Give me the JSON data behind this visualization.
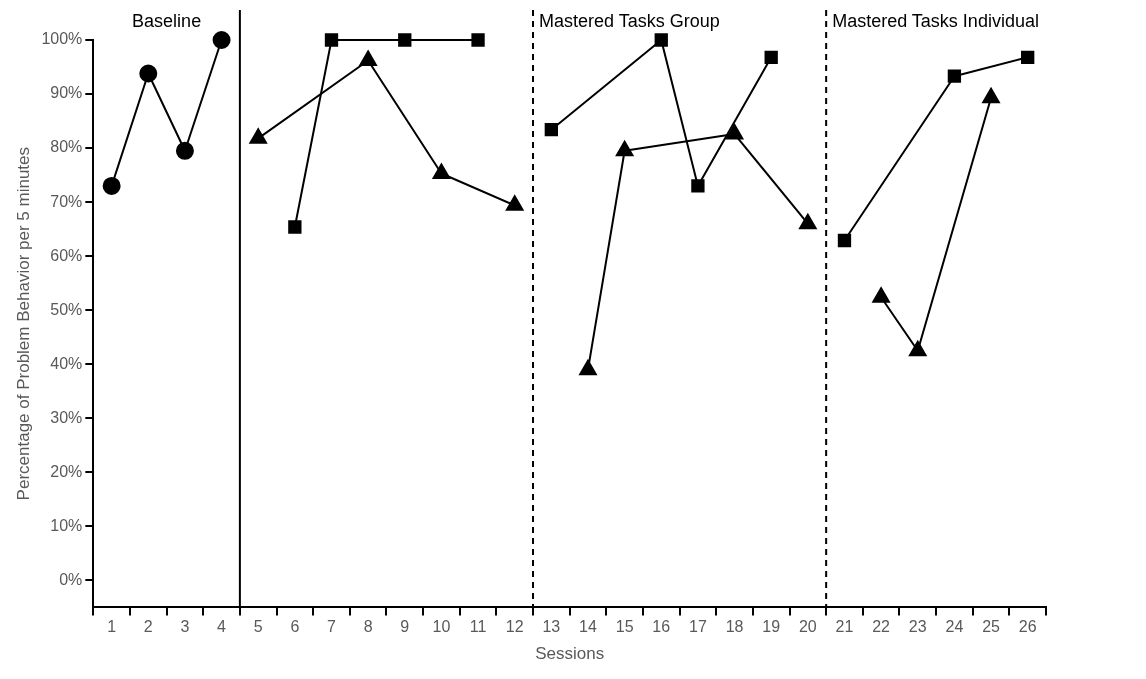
{
  "chart_data": {
    "type": "line",
    "xlabel": "Sessions",
    "ylabel": "Percentage of Problem Behavior per 5 minutes",
    "xlim": [
      0.5,
      26.5
    ],
    "xticks": [
      {
        "value": 0.5,
        "label": null
      },
      1,
      {
        "value": 1.5,
        "label": null
      },
      2,
      {
        "value": 2.5,
        "label": null
      },
      3,
      {
        "value": 3.5,
        "label": null
      },
      4,
      {
        "value": 4.5,
        "label": null
      },
      5,
      {
        "value": 5.5,
        "label": null
      },
      6,
      {
        "value": 6.5,
        "label": null
      },
      7,
      {
        "value": 7.5,
        "label": null
      },
      8,
      {
        "value": 8.5,
        "label": null
      },
      9,
      {
        "value": 9.5,
        "label": null
      },
      10,
      {
        "value": 10.5,
        "label": null
      },
      11,
      {
        "value": 11.5,
        "label": null
      },
      12,
      {
        "value": 12.5,
        "label": null
      },
      13,
      {
        "value": 13.5,
        "label": null
      },
      14,
      {
        "value": 14.5,
        "label": null
      },
      15,
      {
        "value": 15.5,
        "label": null
      },
      16,
      {
        "value": 16.5,
        "label": null
      },
      17,
      {
        "value": 17.5,
        "label": null
      },
      18,
      {
        "value": 18.5,
        "label": null
      },
      19,
      {
        "value": 19.5,
        "label": null
      },
      20,
      {
        "value": 20.5,
        "label": null
      },
      21,
      {
        "value": 21.5,
        "label": null
      },
      22,
      {
        "value": 22.5,
        "label": null
      },
      23,
      {
        "value": 23.5,
        "label": null
      },
      24,
      {
        "value": 24.5,
        "label": null
      },
      25,
      {
        "value": 25.5,
        "label": null
      },
      26,
      {
        "value": 26.5,
        "label": null
      }
    ],
    "ylim": [
      -5,
      100
    ],
    "yticks": [
      {
        "value": 0,
        "label": "0%"
      },
      {
        "value": 10,
        "label": "10%"
      },
      {
        "value": 20,
        "label": "20%"
      },
      {
        "value": 30,
        "label": "30%"
      },
      {
        "value": 40,
        "label": "40%"
      },
      {
        "value": 50,
        "label": "50%"
      },
      {
        "value": 60,
        "label": "60%"
      },
      {
        "value": 70,
        "label": "70%"
      },
      {
        "value": 80,
        "label": "80%"
      },
      {
        "value": 90,
        "label": "90%"
      },
      {
        "value": 100,
        "label": "100%"
      }
    ],
    "grid": false,
    "legend": false,
    "line_style": "solid",
    "series": [
      {
        "color": "#000000",
        "marker": "circle",
        "x": [
          1,
          2,
          3,
          4
        ],
        "values": [
          73,
          93.8,
          79.5,
          100
        ]
      },
      {
        "color": "#000000",
        "marker": "square",
        "x": [
          6,
          7,
          9,
          11
        ],
        "values": [
          65.4,
          100,
          100,
          100
        ]
      },
      {
        "color": "#000000",
        "marker": "triangle",
        "x": [
          5,
          8,
          10,
          12
        ],
        "values": [
          81.8,
          96.2,
          75.3,
          69.4
        ]
      },
      {
        "color": "#000000",
        "marker": "square",
        "x": [
          13,
          16,
          17,
          19
        ],
        "values": [
          83.4,
          100,
          73,
          96.8
        ]
      },
      {
        "color": "#000000",
        "marker": "triangle",
        "x": [
          14,
          15,
          18,
          20
        ],
        "values": [
          39,
          79.5,
          82.6,
          66
        ]
      },
      {
        "color": "#000000",
        "marker": "square",
        "x": [
          21,
          24,
          26
        ],
        "values": [
          62.9,
          93.3,
          96.8
        ]
      },
      {
        "color": "#000000",
        "marker": "triangle",
        "x": [
          22,
          23,
          25
        ],
        "values": [
          52.4,
          42.5,
          89.3
        ]
      }
    ],
    "ref_lines": [
      {
        "axis": "x",
        "value": 4.5,
        "color": "#000000",
        "line_style": "solid"
      },
      {
        "axis": "x",
        "value": 12.5,
        "color": "#000000",
        "line_style": "dashed"
      },
      {
        "axis": "x",
        "value": 20.5,
        "color": "#000000",
        "line_style": "dashed"
      }
    ],
    "annotations": [
      "Baseline",
      "Mastered Tasks Group",
      "Mastered Tasks Individual"
    ]
  }
}
